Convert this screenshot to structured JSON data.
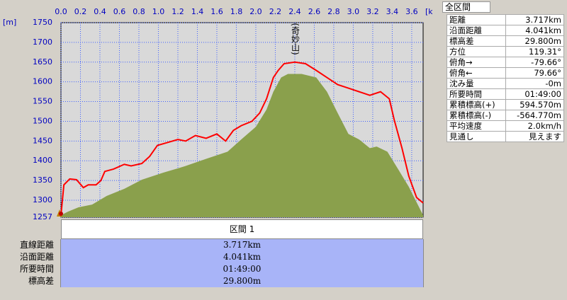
{
  "chart_data": {
    "type": "profile",
    "x_label": "[km]",
    "y_label": "[m]",
    "annotation": "(奇妙山)",
    "xlim": [
      0,
      3.717
    ],
    "xticks": [
      {
        "value": 0,
        "label": "0.0"
      },
      0.2,
      0.4,
      0.6,
      0.8,
      {
        "value": 1,
        "label": "1.0"
      },
      1.2,
      1.4,
      1.6,
      1.8,
      {
        "value": 2,
        "label": "2.0"
      },
      2.2,
      2.4,
      2.6,
      2.8,
      {
        "value": 3,
        "label": "3.0"
      },
      3.2,
      3.4,
      3.6
    ],
    "ylim": [
      1257,
      1750
    ],
    "yticks": [
      1257,
      1300,
      1350,
      1400,
      1450,
      1500,
      1550,
      1600,
      1650,
      1700,
      1750
    ],
    "grid": true,
    "series": [
      {
        "color": "#8aa04c",
        "area": true,
        "x": [
          0,
          0.07,
          0.18,
          0.32,
          0.47,
          0.65,
          0.83,
          1.05,
          1.27,
          1.49,
          1.71,
          1.85,
          2.0,
          2.11,
          2.18,
          2.26,
          2.33,
          2.47,
          2.62,
          2.73,
          2.84,
          2.95,
          3.06,
          3.17,
          3.24,
          3.35,
          3.46,
          3.57,
          3.68,
          3.717
        ],
        "values": [
          1262,
          1271,
          1282,
          1289,
          1311,
          1329,
          1352,
          1370,
          1386,
          1405,
          1423,
          1454,
          1486,
          1530,
          1575,
          1611,
          1620,
          1620,
          1611,
          1575,
          1521,
          1468,
          1454,
          1432,
          1436,
          1423,
          1379,
          1334,
          1280,
          1262
        ]
      },
      {
        "color": "#ff0000",
        "area": false,
        "x": [
          0,
          0.03,
          0.09,
          0.16,
          0.23,
          0.28,
          0.36,
          0.41,
          0.45,
          0.54,
          0.65,
          0.72,
          0.83,
          0.91,
          0.99,
          1.09,
          1.2,
          1.28,
          1.38,
          1.49,
          1.6,
          1.69,
          1.77,
          1.85,
          1.96,
          2.04,
          2.11,
          2.18,
          2.23,
          2.29,
          2.4,
          2.51,
          2.62,
          2.73,
          2.84,
          2.95,
          3.06,
          3.17,
          3.28,
          3.37,
          3.42,
          3.5,
          3.57,
          3.65,
          3.717
        ],
        "values": [
          1262,
          1339,
          1354,
          1352,
          1332,
          1339,
          1339,
          1350,
          1373,
          1379,
          1391,
          1387,
          1393,
          1411,
          1439,
          1446,
          1454,
          1450,
          1464,
          1457,
          1468,
          1450,
          1477,
          1489,
          1500,
          1521,
          1557,
          1611,
          1629,
          1646,
          1650,
          1646,
          1629,
          1611,
          1593,
          1584,
          1575,
          1566,
          1575,
          1557,
          1504,
          1432,
          1361,
          1307,
          1293
        ]
      }
    ]
  },
  "summary": {
    "title": "全区間",
    "rows": [
      [
        "距離",
        "3.717km"
      ],
      [
        "沿面距離",
        "4.041km"
      ],
      [
        "標高差",
        "29.800m"
      ],
      [
        "方位",
        "119.31°"
      ],
      [
        "俯角→",
        "-79.66°"
      ],
      [
        "俯角←",
        "79.66°"
      ],
      [
        "沈み量",
        "-0m"
      ],
      [
        "所要時間",
        "01:49:00"
      ],
      [
        "累積標高(+)",
        "594.570m"
      ],
      [
        "累積標高(-)",
        "-564.770m"
      ],
      [
        "平均速度",
        "2.0km/h"
      ],
      [
        "見通し",
        "見えます"
      ]
    ]
  },
  "section": {
    "header": "区間 1",
    "rows": [
      [
        "直線距離",
        "3.717km"
      ],
      [
        "沿面距離",
        "4.041km"
      ],
      [
        "所要時間",
        "01:49:00"
      ],
      [
        "標高差",
        "29.800m"
      ]
    ]
  }
}
